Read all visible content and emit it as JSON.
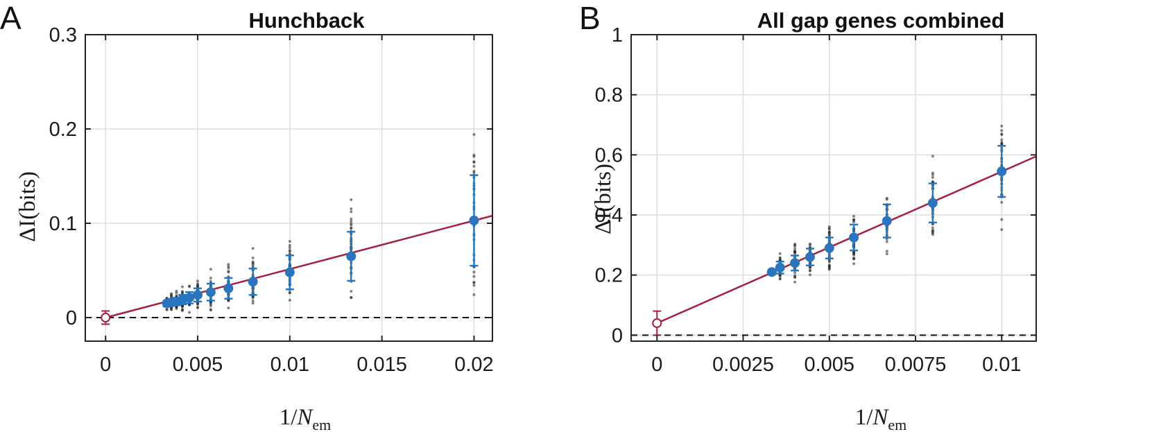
{
  "panels": [
    {
      "letter": "A",
      "title": "Hunchback",
      "ylabel": {
        "main": "ΔI",
        "unit": "(bits)"
      },
      "xlabel": {
        "prefix": "1/",
        "var": "N",
        "sub": "em"
      },
      "xticks": [
        {
          "v": 0,
          "label": "0"
        },
        {
          "v": 0.005,
          "label": "0.005"
        },
        {
          "v": 0.01,
          "label": "0.01"
        },
        {
          "v": 0.015,
          "label": "0.015"
        },
        {
          "v": 0.02,
          "label": "0.02"
        }
      ],
      "yticks": [
        {
          "v": 0,
          "label": "0"
        },
        {
          "v": 0.1,
          "label": "0.1"
        },
        {
          "v": 0.2,
          "label": "0.2"
        },
        {
          "v": 0.3,
          "label": "0.3"
        }
      ]
    },
    {
      "letter": "B",
      "title": "All gap genes combined",
      "ylabel": {
        "main": "ΔI",
        "unit": "(bits)"
      },
      "xlabel": {
        "prefix": "1/",
        "var": "N",
        "sub": "em"
      },
      "xticks": [
        {
          "v": 0,
          "label": "0"
        },
        {
          "v": 0.0025,
          "label": "0.0025"
        },
        {
          "v": 0.005,
          "label": "0.005"
        },
        {
          "v": 0.0075,
          "label": "0.0075"
        },
        {
          "v": 0.01,
          "label": "0.01"
        }
      ],
      "yticks": [
        {
          "v": 0,
          "label": "0"
        },
        {
          "v": 0.2,
          "label": "0.2"
        },
        {
          "v": 0.4,
          "label": "0.4"
        },
        {
          "v": 0.6,
          "label": "0.6"
        },
        {
          "v": 0.8,
          "label": "0.8"
        },
        {
          "v": 1,
          "label": "1"
        }
      ]
    }
  ],
  "colors": {
    "mean_marker": "#2a75bd",
    "error_bar": "#1f78c8",
    "fit_line": "#a3203f",
    "samples": "#222222",
    "zero_line": "#111111",
    "grid": "#dddddd"
  },
  "chart_data": [
    {
      "type": "scatter",
      "title": "Hunchback",
      "xlabel": "1/N_em",
      "ylabel": "ΔI (bits)",
      "xlim": [
        -0.0011,
        0.021
      ],
      "ylim": [
        -0.025,
        0.3
      ],
      "grid": true,
      "zero_reference": 0,
      "extrapolation": {
        "x": 0,
        "y": 0.0,
        "err": 0.007
      },
      "fit_line": {
        "x": [
          0,
          0.021
        ],
        "y": [
          0,
          0.108
        ]
      },
      "series": [
        {
          "x": [
            0.00333,
            0.00357,
            0.00385,
            0.00417,
            0.00455,
            0.005,
            0.00571,
            0.00667,
            0.008,
            0.01,
            0.01333,
            0.02
          ],
          "y": [
            0.015,
            0.016,
            0.017,
            0.019,
            0.021,
            0.024,
            0.027,
            0.031,
            0.038,
            0.048,
            0.065,
            0.103
          ],
          "err": [
            0.003,
            0.0035,
            0.004,
            0.005,
            0.006,
            0.007,
            0.009,
            0.011,
            0.014,
            0.018,
            0.026,
            0.048
          ],
          "sample_spread": [
            0.006,
            0.007,
            0.008,
            0.009,
            0.011,
            0.013,
            0.016,
            0.02,
            0.025,
            0.032,
            0.045,
            0.09
          ]
        }
      ]
    },
    {
      "type": "scatter",
      "title": "All gap genes combined",
      "xlabel": "1/N_em",
      "ylabel": "ΔI (bits)",
      "xlim": [
        -0.00075,
        0.011
      ],
      "ylim": [
        -0.02,
        1
      ],
      "grid": true,
      "zero_reference": 0,
      "extrapolation": {
        "x": 0,
        "y": 0.04,
        "err": 0.04
      },
      "fit_line": {
        "x": [
          0,
          0.011
        ],
        "y": [
          0.04,
          0.595
        ]
      },
      "series": [
        {
          "x": [
            0.00333,
            0.00357,
            0.004,
            0.00444,
            0.005,
            0.00571,
            0.00667,
            0.008,
            0.01
          ],
          "y": [
            0.21,
            0.225,
            0.24,
            0.26,
            0.29,
            0.325,
            0.38,
            0.44,
            0.545
          ],
          "err": [
            0.006,
            0.02,
            0.025,
            0.028,
            0.035,
            0.043,
            0.055,
            0.065,
            0.085
          ],
          "sample_spread": [
            0.01,
            0.04,
            0.045,
            0.05,
            0.06,
            0.07,
            0.085,
            0.11,
            0.17
          ]
        }
      ]
    }
  ]
}
